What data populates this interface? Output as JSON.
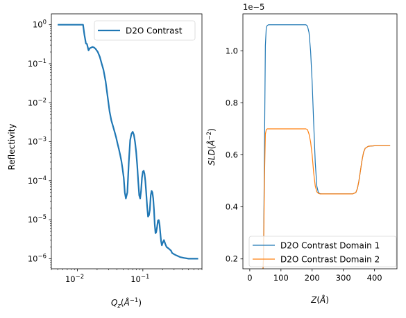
{
  "chart_data": [
    {
      "type": "line",
      "xscale": "log",
      "yscale": "log",
      "xlim": [
        0.004,
        0.8
      ],
      "ylim": [
        5.5e-07,
        1.9
      ],
      "xlabel": "Q_z(Å^-1)",
      "ylabel": "Reflectivity",
      "x_ticks": [
        {
          "value": 0.01,
          "base": "10",
          "exp": "−2"
        },
        {
          "value": 0.1,
          "base": "10",
          "exp": "−1"
        }
      ],
      "y_ticks": [
        {
          "value": 1,
          "base": "10",
          "exp": "0"
        },
        {
          "value": 0.1,
          "base": "10",
          "exp": "−1"
        },
        {
          "value": 0.01,
          "base": "10",
          "exp": "−2"
        },
        {
          "value": 0.001,
          "base": "10",
          "exp": "−3"
        },
        {
          "value": 0.0001,
          "base": "10",
          "exp": "−4"
        },
        {
          "value": 1e-05,
          "base": "10",
          "exp": "−5"
        },
        {
          "value": 1e-06,
          "base": "10",
          "exp": "−6"
        }
      ],
      "legend": "upper right",
      "series": [
        {
          "name": "D2O Contrast",
          "color": "#1f77b4",
          "x": [
            0.005,
            0.0072,
            0.01,
            0.0122,
            0.0128,
            0.0135,
            0.014,
            0.0148,
            0.0155,
            0.0163,
            0.017,
            0.018,
            0.019,
            0.0205,
            0.022,
            0.0235,
            0.025,
            0.027,
            0.029,
            0.031,
            0.033,
            0.035,
            0.037,
            0.039,
            0.041,
            0.043,
            0.045,
            0.047,
            0.049,
            0.051,
            0.053,
            0.055,
            0.058,
            0.061,
            0.064,
            0.067,
            0.07,
            0.073,
            0.076,
            0.079,
            0.082,
            0.085,
            0.088,
            0.091,
            0.094,
            0.097,
            0.1,
            0.103,
            0.106,
            0.109,
            0.112,
            0.116,
            0.12,
            0.124,
            0.128,
            0.132,
            0.136,
            0.14,
            0.144,
            0.148,
            0.152,
            0.156,
            0.16,
            0.165,
            0.17,
            0.175,
            0.18,
            0.185,
            0.19,
            0.195,
            0.2,
            0.21,
            0.22,
            0.23,
            0.24,
            0.25,
            0.26,
            0.27,
            0.28,
            0.3,
            0.33,
            0.37,
            0.42,
            0.5,
            0.6,
            0.7
          ],
          "y": [
            1.0,
            1.0,
            1.0,
            1.0,
            0.55,
            0.33,
            0.32,
            0.22,
            0.25,
            0.26,
            0.27,
            0.26,
            0.24,
            0.2,
            0.15,
            0.1,
            0.07,
            0.035,
            0.014,
            0.006,
            0.0035,
            0.0025,
            0.0018,
            0.0013,
            0.0009,
            0.00065,
            0.00046,
            0.00032,
            0.0002,
            0.00012,
            5e-05,
            3.5e-05,
            5e-05,
            0.0003,
            0.0011,
            0.0016,
            0.0018,
            0.0015,
            0.00098,
            0.00055,
            0.00025,
            9.5e-05,
            4.2e-05,
            3.5e-05,
            5.5e-05,
            0.00012,
            0.00017,
            0.00018,
            0.00015,
            0.0001,
            5.5e-05,
            2.3e-05,
            1.2e-05,
            1.3e-05,
            1.8e-05,
            4.2e-05,
            5.5e-05,
            5e-05,
            3.5e-05,
            1.8e-05,
            7.5e-06,
            4.5e-06,
            4.8e-06,
            6.5e-06,
            9.5e-06,
            9.8e-06,
            7.5e-06,
            4.5e-06,
            2.8e-06,
            2.2e-06,
            2.5e-06,
            3e-06,
            2.4e-06,
            2e-06,
            1.9e-06,
            1.8e-06,
            1.7e-06,
            1.6e-06,
            1.4e-06,
            1.3e-06,
            1.2e-06,
            1.1e-06,
            1.05e-06,
            1e-06,
            1e-06,
            1e-06
          ]
        }
      ]
    },
    {
      "type": "line",
      "xlim": [
        -22,
        472
      ],
      "ylim": [
        0.162,
        1.142
      ],
      "y_multiplier": "1e−5",
      "xlabel": "Z(Å)",
      "ylabel": "SLD(Å^-2)",
      "x_ticks": [
        0,
        100,
        200,
        300,
        400
      ],
      "y_ticks": [
        {
          "value": 0.2,
          "label": "0.2"
        },
        {
          "value": 0.4,
          "label": "0.4"
        },
        {
          "value": 0.6,
          "label": "0.6"
        },
        {
          "value": 0.8,
          "label": "0.8"
        },
        {
          "value": 1.0,
          "label": "1.0"
        }
      ],
      "legend": "lower left",
      "series": [
        {
          "name": "D2O Contrast Domain 1",
          "color": "#1f77b4",
          "x": [
            20,
            40,
            44,
            47,
            50,
            53,
            56,
            60,
            70,
            100,
            150,
            180,
            185,
            190,
            195,
            200,
            205,
            210,
            215,
            220,
            225,
            230,
            260,
            300,
            330,
            340,
            345,
            350,
            355,
            360,
            365,
            370,
            380,
            400,
            450
          ],
          "y": [
            0.05,
            0.1,
            0.2,
            0.6,
            1.02,
            1.09,
            1.097,
            1.1,
            1.1,
            1.1,
            1.1,
            1.1,
            1.095,
            1.07,
            1.0,
            0.88,
            0.72,
            0.57,
            0.48,
            0.455,
            0.451,
            0.45,
            0.45,
            0.45,
            0.45,
            0.455,
            0.47,
            0.5,
            0.54,
            0.58,
            0.61,
            0.625,
            0.633,
            0.635,
            0.635
          ]
        },
        {
          "name": "D2O Contrast Domain 2",
          "color": "#ff7f0e",
          "x": [
            20,
            40,
            44,
            47,
            50,
            53,
            56,
            60,
            70,
            100,
            150,
            180,
            185,
            190,
            195,
            200,
            205,
            210,
            215,
            220,
            225,
            230,
            260,
            300,
            330,
            340,
            345,
            350,
            355,
            360,
            365,
            370,
            380,
            400,
            450
          ],
          "y": [
            0.05,
            0.1,
            0.2,
            0.5,
            0.68,
            0.697,
            0.7,
            0.7,
            0.7,
            0.7,
            0.7,
            0.7,
            0.697,
            0.68,
            0.65,
            0.6,
            0.53,
            0.48,
            0.458,
            0.452,
            0.45,
            0.45,
            0.45,
            0.45,
            0.45,
            0.455,
            0.47,
            0.5,
            0.54,
            0.58,
            0.61,
            0.625,
            0.633,
            0.635,
            0.635
          ]
        }
      ]
    }
  ]
}
